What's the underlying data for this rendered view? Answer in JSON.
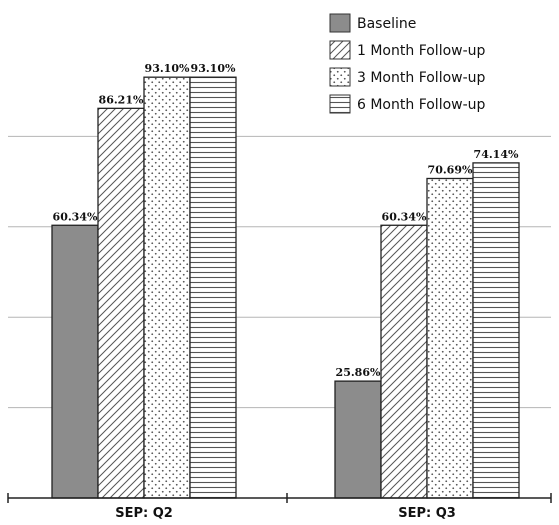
{
  "chart_data": {
    "type": "bar",
    "categories": [
      "SEP: Q2",
      "SEP: Q3"
    ],
    "series": [
      {
        "name": "Baseline",
        "values": [
          60.34,
          25.86
        ],
        "labels": [
          "60.34%",
          "25.86%"
        ]
      },
      {
        "name": "1 Month Follow-up",
        "values": [
          86.21,
          60.34
        ],
        "labels": [
          "86.21%",
          "60.34%"
        ]
      },
      {
        "name": "3 Month Follow-up",
        "values": [
          93.1,
          70.69
        ],
        "labels": [
          "93.10%",
          "70.69%"
        ]
      },
      {
        "name": "6 Month Follow-up",
        "values": [
          93.1,
          74.14
        ],
        "labels": [
          "93.10%",
          "74.14%"
        ]
      }
    ],
    "ylim": [
      0,
      100
    ],
    "grid": true,
    "legend_position": "top-right",
    "title": "",
    "xlabel": "",
    "ylabel": ""
  },
  "colors": {
    "baseline_fill": "#8c8c8c",
    "pattern_stroke": "#555555",
    "grid": "#b5b5b5",
    "axis": "#222222"
  }
}
